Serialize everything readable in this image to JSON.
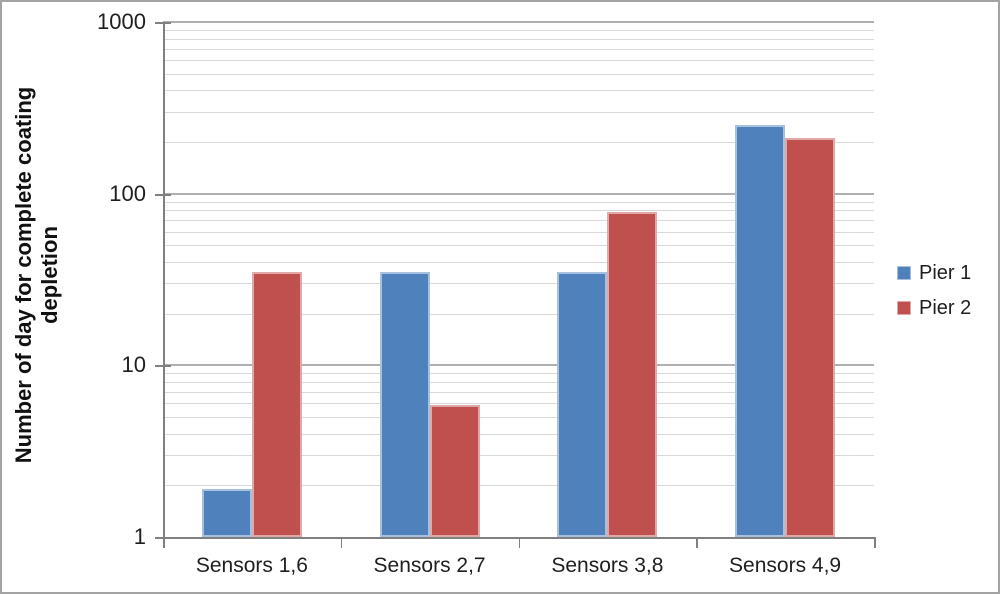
{
  "chart_data": {
    "type": "bar",
    "title": "",
    "categories": [
      "Sensors 1,6",
      "Sensors 2,7",
      "Sensors 3,8",
      "Sensors 4,9"
    ],
    "series": [
      {
        "name": "Pier 1",
        "color": "#4F81BD",
        "values": [
          1.9,
          35,
          35,
          250
        ]
      },
      {
        "name": "Pier 2",
        "color": "#C0504D",
        "values": [
          35,
          5.9,
          78,
          210
        ]
      }
    ],
    "xlabel": "",
    "ylabel": "Number of day for complete coating depletion",
    "ylabel_lines": [
      "Number of day for complete coating",
      "depletion"
    ],
    "y_scale": "log",
    "ylim": [
      1,
      1000
    ],
    "y_ticks": [
      1,
      10,
      100,
      1000
    ],
    "y_tick_labels": [
      "1",
      "10",
      "100",
      "1000"
    ],
    "grid": "major-and-minor-horizontal",
    "legend_position": "right",
    "legend_labels": [
      "Pier 1",
      "Pier 2"
    ]
  },
  "colors": {
    "series_pier1": "#4F81BD",
    "series_pier2": "#C0504D",
    "major_gridline": "#B0B0B0",
    "minor_gridline": "#D9D9D9",
    "axis": "#808080",
    "frame_border": "#A3A3A3",
    "background": "#FFFFFF",
    "text": "#1F1F1F"
  }
}
